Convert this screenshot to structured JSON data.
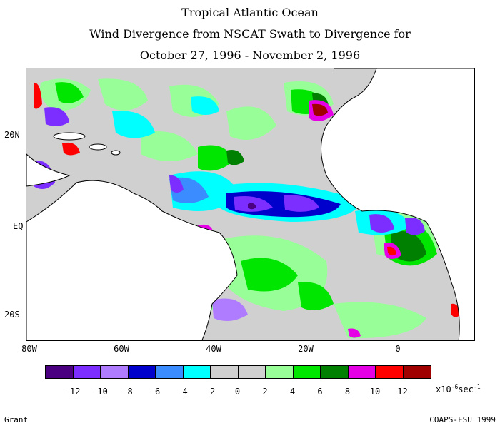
{
  "title": {
    "line1": "Tropical Atlantic Ocean",
    "line2": "Wind Divergence from NSCAT Swath to Divergence for",
    "line3": "October 27, 1996 - November 2, 1996"
  },
  "map": {
    "lat_labels": [
      "20N",
      "EQ",
      "20S"
    ],
    "lon_labels": [
      "80W",
      "60W",
      "40W",
      "20W",
      "0"
    ],
    "land_color": "#ffffff",
    "background_field_color": "#d0d0d0"
  },
  "colorbar": {
    "colors": [
      "#4b0082",
      "#7b2eff",
      "#b07cff",
      "#0000cc",
      "#3a8cff",
      "#00ffff",
      "#d0d0d0",
      "#d0d0d0",
      "#98ff98",
      "#00e600",
      "#008000",
      "#e600e6",
      "#ff0000",
      "#a00000"
    ],
    "labels": [
      "-12",
      "-10",
      "-8",
      "-6",
      "-4",
      "-2",
      "0",
      "2",
      "4",
      "6",
      "8",
      "10",
      "12"
    ],
    "units_text": "x10",
    "units_exp": "-6",
    "units_tail": "sec",
    "units_tail_exp": "-1"
  },
  "credits": {
    "left": "Grant",
    "right": "COAPS-FSU 1999"
  }
}
